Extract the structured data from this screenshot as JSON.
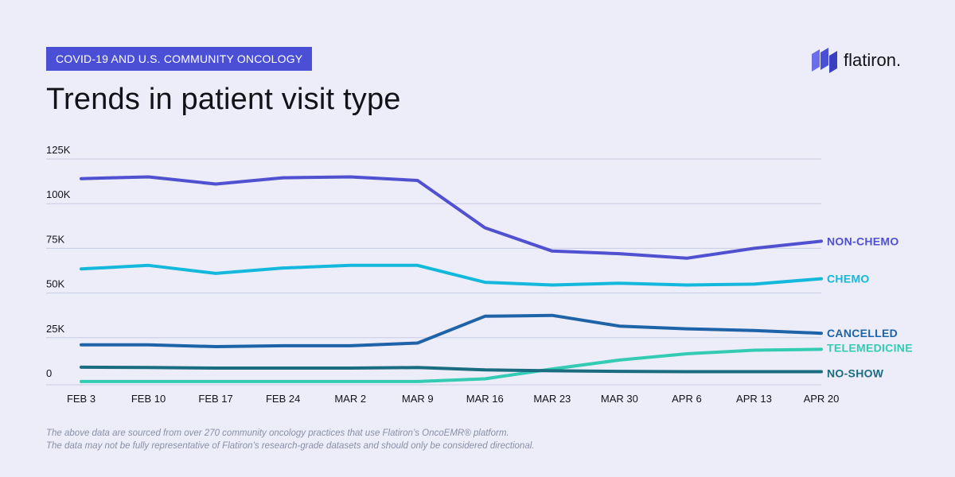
{
  "header": {
    "badge": "COVID-19 AND U.S. COMMUNITY ONCOLOGY",
    "title": "Trends in patient visit type"
  },
  "logo": {
    "text": "flatiron.",
    "icon": "flatiron-logo-icon"
  },
  "footnote": {
    "line1": "The above data are sourced from over 270 community oncology practices that use Flatiron’s OncoEMR® platform.",
    "line2": "The data may not be fully representative of Flatiron’s research-grade datasets and should only be considered directional."
  },
  "colors": {
    "background": "#ECEDF8",
    "accent": "#4B4FD6",
    "grid": "#C8CBE3",
    "non_chemo": "#5050D0",
    "chemo": "#14B8DC",
    "cancelled": "#1E63A8",
    "telemedicine": "#33CCB2",
    "no_show": "#1A6C80"
  },
  "chart_data": {
    "type": "line",
    "categories": [
      "FEB 3",
      "FEB 10",
      "FEB 17",
      "FEB 24",
      "MAR 2",
      "MAR 9",
      "MAR 16",
      "MAR 23",
      "MAR 30",
      "APR 6",
      "APR 13",
      "APR 20"
    ],
    "ylim": [
      0,
      125000
    ],
    "yticks": [
      {
        "value": 0,
        "label": "0"
      },
      {
        "value": 25000,
        "label": "25K"
      },
      {
        "value": 50000,
        "label": "50K"
      },
      {
        "value": 75000,
        "label": "75K"
      },
      {
        "value": 100000,
        "label": "100K"
      },
      {
        "value": 125000,
        "label": "125K"
      }
    ],
    "grid": true,
    "legend": "end-of-line labels",
    "series": [
      {
        "name": "NON-CHEMO",
        "color": "#5050D0",
        "values": [
          114000,
          115000,
          111000,
          114500,
          115000,
          113000,
          86500,
          73500,
          72000,
          69500,
          75000,
          79000
        ]
      },
      {
        "name": "CHEMO",
        "color": "#14B8DC",
        "values": [
          63500,
          65500,
          61000,
          64000,
          65500,
          65500,
          56000,
          54500,
          55500,
          54500,
          55000,
          58000
        ]
      },
      {
        "name": "CANCELLED",
        "color": "#1E63A8",
        "values": [
          21000,
          21000,
          20000,
          20500,
          20500,
          22000,
          37000,
          37500,
          31500,
          30000,
          29000,
          27500
        ]
      },
      {
        "name": "TELEMEDICINE",
        "color": "#33CCB2",
        "values": [
          500,
          500,
          500,
          500,
          500,
          500,
          2000,
          7500,
          12500,
          16000,
          18000,
          18500
        ]
      },
      {
        "name": "NO-SHOW",
        "color": "#1A6C80",
        "values": [
          8500,
          8300,
          8000,
          8000,
          8000,
          8300,
          7000,
          6500,
          6200,
          6000,
          6000,
          6000
        ]
      }
    ]
  }
}
